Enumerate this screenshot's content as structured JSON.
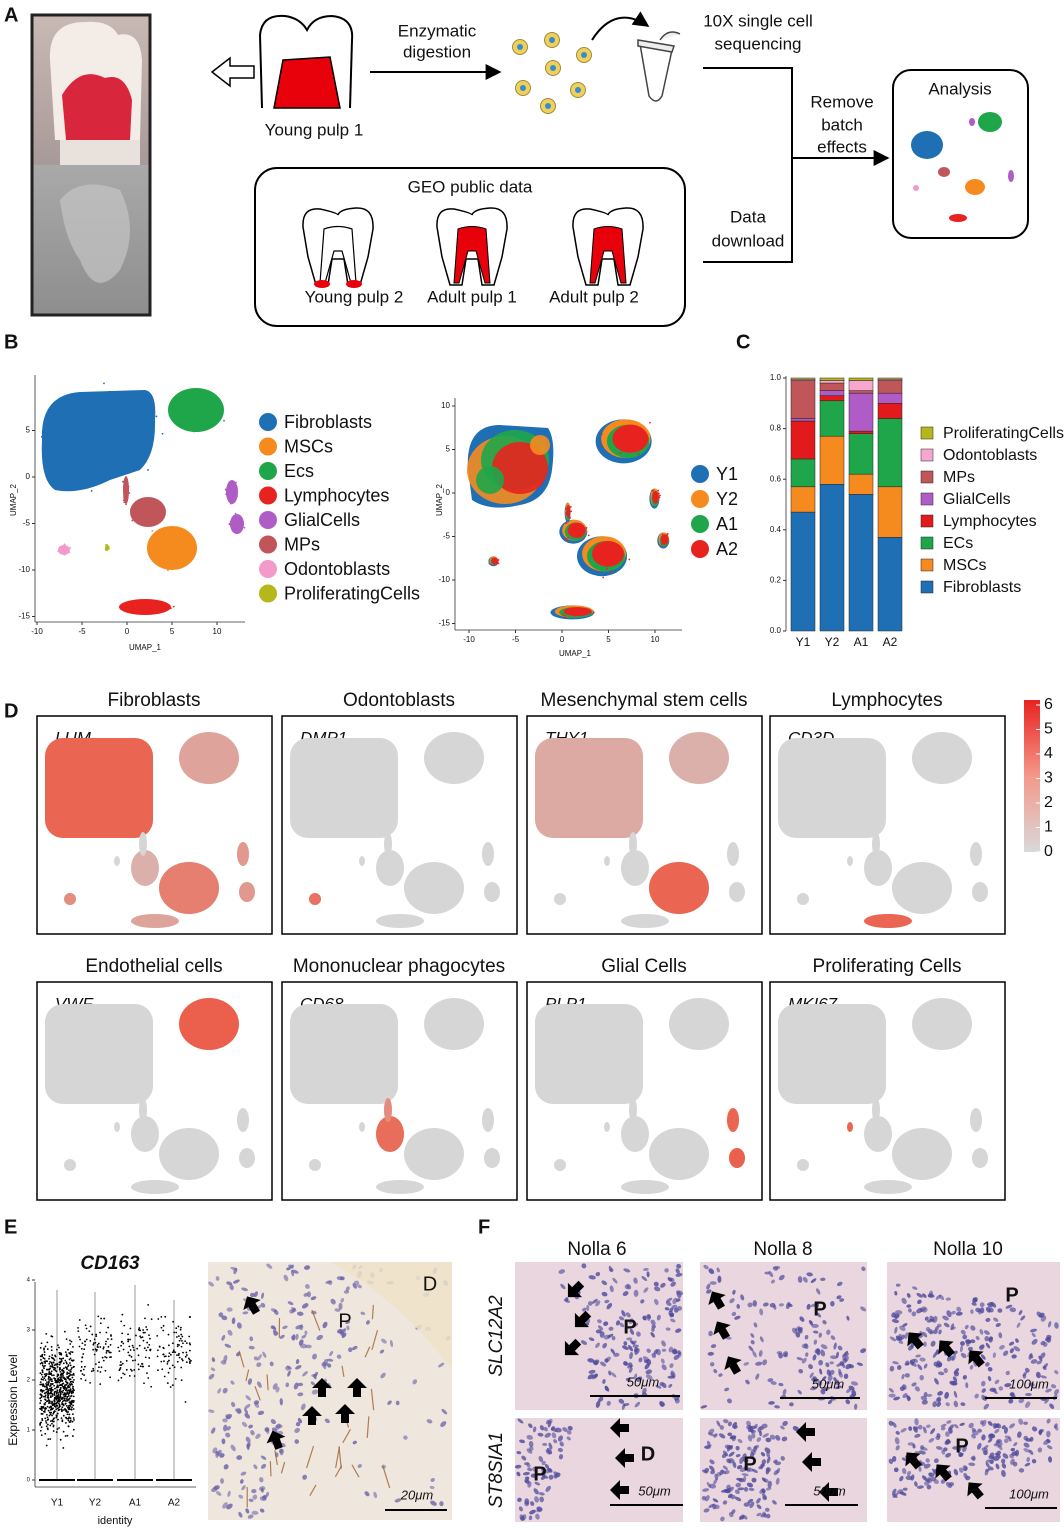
{
  "panel_labels": [
    "A",
    "B",
    "C",
    "D",
    "E",
    "F"
  ],
  "panel_a": {
    "young_pulp_1": "Young pulp 1",
    "step1": [
      "Enzymatic",
      "digestion"
    ],
    "step2": [
      "10X single cell",
      "sequencing"
    ],
    "batch": [
      "Remove",
      "batch",
      "effects"
    ],
    "download": [
      "Data",
      "download"
    ],
    "analysis": "Analysis",
    "geo": {
      "title": "GEO public data",
      "samples": [
        "Young pulp 2",
        "Adult pulp 1",
        "Adult pulp 2"
      ]
    }
  },
  "panel_b": {
    "umap_celltype": {
      "x_label": "UMAP_1",
      "y_label": "UMAP_2",
      "xticks": [
        -10,
        -5,
        0,
        5,
        10
      ],
      "yticks": [
        5,
        0,
        -5,
        -10,
        -15
      ],
      "legend": [
        {
          "name": "Fibroblasts",
          "color": "#1f6fb5"
        },
        {
          "name": "MSCs",
          "color": "#f58b1f"
        },
        {
          "name": "Ecs",
          "color": "#1fa64a"
        },
        {
          "name": "Lymphocytes",
          "color": "#e8231f"
        },
        {
          "name": "GlialCells",
          "color": "#b05cc6"
        },
        {
          "name": "MPs",
          "color": "#c0555a"
        },
        {
          "name": "Odontoblasts",
          "color": "#f29ac8"
        },
        {
          "name": "ProliferatingCells",
          "color": "#b5b81a"
        }
      ]
    },
    "umap_sample": {
      "x_label": "UMAP_1",
      "y_label": "UMAP_2",
      "xticks": [
        -10,
        -5,
        0,
        5,
        10
      ],
      "yticks": [
        10,
        5,
        0,
        -5,
        -10,
        -15
      ],
      "legend": [
        {
          "name": "Y1",
          "color": "#1f6fb5"
        },
        {
          "name": "Y2",
          "color": "#f58b1f"
        },
        {
          "name": "A1",
          "color": "#1fa64a"
        },
        {
          "name": "A2",
          "color": "#e8231f"
        }
      ]
    }
  },
  "chart_data": {
    "type": "bar",
    "stacked": true,
    "categories": [
      "Y1",
      "Y2",
      "A1",
      "A2"
    ],
    "series": [
      {
        "name": "Fibroblasts",
        "color": "#1f6fb5",
        "values": [
          0.47,
          0.58,
          0.54,
          0.37
        ]
      },
      {
        "name": "MSCs",
        "color": "#f58b1f",
        "values": [
          0.1,
          0.19,
          0.08,
          0.2
        ]
      },
      {
        "name": "ECs",
        "color": "#1fa64a",
        "values": [
          0.11,
          0.14,
          0.16,
          0.27
        ]
      },
      {
        "name": "Lymphocytes",
        "color": "#e31a1c",
        "values": [
          0.15,
          0.02,
          0.01,
          0.06
        ]
      },
      {
        "name": "GlialCells",
        "color": "#b05cc6",
        "values": [
          0.01,
          0.02,
          0.15,
          0.04
        ]
      },
      {
        "name": "MPs",
        "color": "#c0555a",
        "values": [
          0.15,
          0.03,
          0.01,
          0.05
        ]
      },
      {
        "name": "Odontoblasts",
        "color": "#f6a6cf",
        "values": [
          0.005,
          0.01,
          0.04,
          0.005
        ]
      },
      {
        "name": "ProliferatingCells",
        "color": "#b5b81a",
        "values": [
          0.005,
          0.01,
          0.01,
          0.005
        ]
      }
    ],
    "ylim": [
      0,
      1
    ],
    "yticks": [
      {
        "value": 0,
        "label": "0.0"
      },
      0.2,
      0.4,
      0.6,
      0.8,
      {
        "value": 1,
        "label": "1.0"
      }
    ]
  },
  "panel_d": {
    "plots": [
      {
        "title": "Fibroblasts",
        "gene": "LUM"
      },
      {
        "title": "Odontoblasts",
        "gene": "DMP1"
      },
      {
        "title": "Mesenchymal stem cells",
        "gene": "THY1"
      },
      {
        "title": "Lymphocytes",
        "gene": "CD3D"
      },
      {
        "title": "Endothelial cells",
        "gene": "VWF"
      },
      {
        "title": "Mononuclear phagocytes",
        "gene": "CD68"
      },
      {
        "title": "Glial Cells",
        "gene": "PLP1"
      },
      {
        "title": "Proliferating Cells",
        "gene": "MKI67"
      }
    ],
    "colorbar_ticks": [
      6,
      5,
      4,
      3,
      2,
      1,
      0
    ]
  },
  "panel_e": {
    "title": "CD163",
    "y_label": "Expression Level",
    "x_label": "identity",
    "categories": [
      "Y1",
      "Y2",
      "A1",
      "A2"
    ],
    "yticks": [
      0,
      1,
      2,
      3,
      4
    ],
    "image_labels": [
      "P",
      "D"
    ],
    "scale": "20μm"
  },
  "panel_f": {
    "columns": [
      "Nolla 6",
      "Nolla 8",
      "Nolla 10"
    ],
    "rows": [
      "SLC12A2",
      "ST8SIA1"
    ],
    "images": [
      [
        {
          "labels": [
            "P"
          ],
          "scale": "50μm"
        },
        {
          "labels": [
            "P"
          ],
          "scale": "50μm"
        },
        {
          "labels": [
            "P"
          ],
          "scale": "100μm"
        }
      ],
      [
        {
          "labels": [
            "P",
            "D"
          ],
          "scale": "50μm"
        },
        {
          "labels": [
            "P"
          ],
          "scale": "50μm"
        },
        {
          "labels": [
            "P"
          ],
          "scale": "100μm"
        }
      ]
    ]
  }
}
